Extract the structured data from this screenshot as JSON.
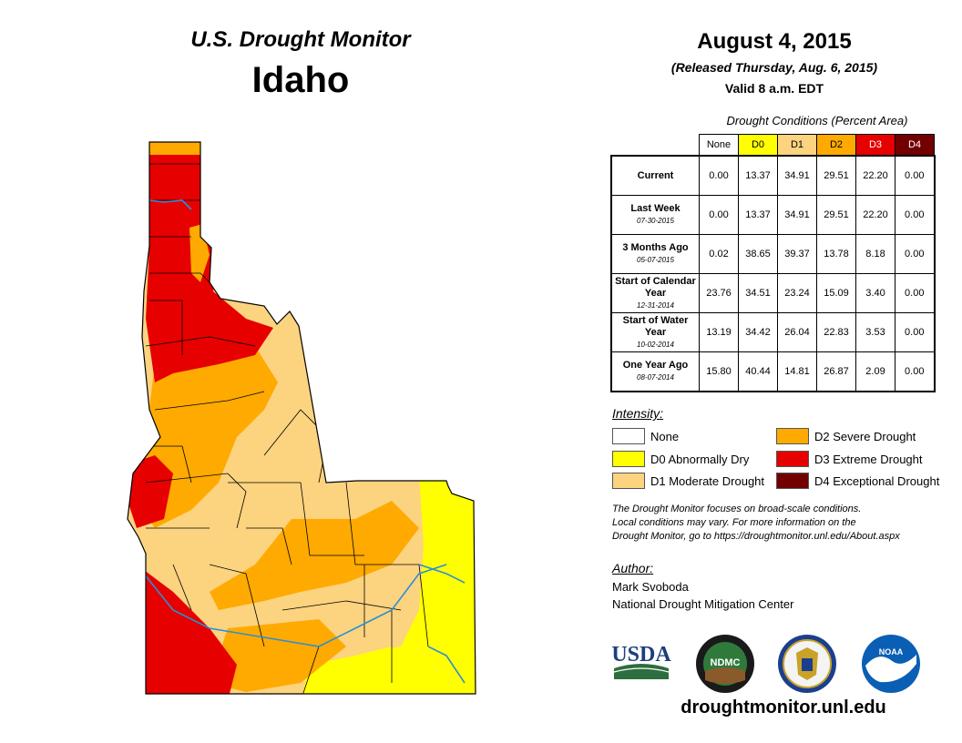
{
  "header": {
    "brand": "U.S. Drought Monitor",
    "state": "Idaho",
    "date": "August 4, 2015",
    "released": "(Released Thursday, Aug. 6, 2015)",
    "valid": "Valid 8 a.m. EDT"
  },
  "table": {
    "caption": "Drought Conditions (Percent Area)",
    "columns": [
      "None",
      "D0",
      "D1",
      "D2",
      "D3",
      "D4"
    ],
    "column_colors": [
      "#ffffff",
      "#ffff00",
      "#fcd37f",
      "#ffaa00",
      "#e60000",
      "#730000"
    ],
    "column_text_colors": [
      "#000000",
      "#000000",
      "#000000",
      "#000000",
      "#ffffff",
      "#ffffff"
    ],
    "rows": [
      {
        "label": "Current",
        "date": "",
        "values": [
          "0.00",
          "13.37",
          "34.91",
          "29.51",
          "22.20",
          "0.00"
        ]
      },
      {
        "label": "Last Week",
        "date": "07-30-2015",
        "values": [
          "0.00",
          "13.37",
          "34.91",
          "29.51",
          "22.20",
          "0.00"
        ]
      },
      {
        "label": "3 Months Ago",
        "date": "05-07-2015",
        "values": [
          "0.02",
          "38.65",
          "39.37",
          "13.78",
          "8.18",
          "0.00"
        ]
      },
      {
        "label": "Start of Calendar Year",
        "date": "12-31-2014",
        "values": [
          "23.76",
          "34.51",
          "23.24",
          "15.09",
          "3.40",
          "0.00"
        ]
      },
      {
        "label": "Start of Water Year",
        "date": "10-02-2014",
        "values": [
          "13.19",
          "34.42",
          "26.04",
          "22.83",
          "3.53",
          "0.00"
        ]
      },
      {
        "label": "One Year Ago",
        "date": "08-07-2014",
        "values": [
          "15.80",
          "40.44",
          "14.81",
          "26.87",
          "2.09",
          "0.00"
        ]
      }
    ]
  },
  "legend": {
    "title": "Intensity:",
    "items": [
      {
        "label": "None",
        "color": "#ffffff"
      },
      {
        "label": "D0 Abnormally Dry",
        "color": "#ffff00"
      },
      {
        "label": "D1 Moderate Drought",
        "color": "#fcd37f"
      },
      {
        "label": "D2 Severe Drought",
        "color": "#ffaa00"
      },
      {
        "label": "D3 Extreme Drought",
        "color": "#e60000"
      },
      {
        "label": "D4 Exceptional Drought",
        "color": "#730000"
      }
    ]
  },
  "note": {
    "line1": "The Drought Monitor focuses on broad-scale conditions.",
    "line2": "Local conditions may vary. For more information on the",
    "line3": "Drought Monitor, go to https://droughtmonitor.unl.edu/About.aspx"
  },
  "author": {
    "title": "Author:",
    "name": "Mark Svoboda",
    "org": "National Drought Mitigation Center"
  },
  "logos": {
    "usda": "USDA",
    "ndmc": "NDMC",
    "noaa": "NOAA"
  },
  "footer": {
    "url": "droughtmonitor.unl.edu"
  },
  "map": {
    "river_color": "#2a8fd8",
    "county_line_color": "#000000"
  }
}
